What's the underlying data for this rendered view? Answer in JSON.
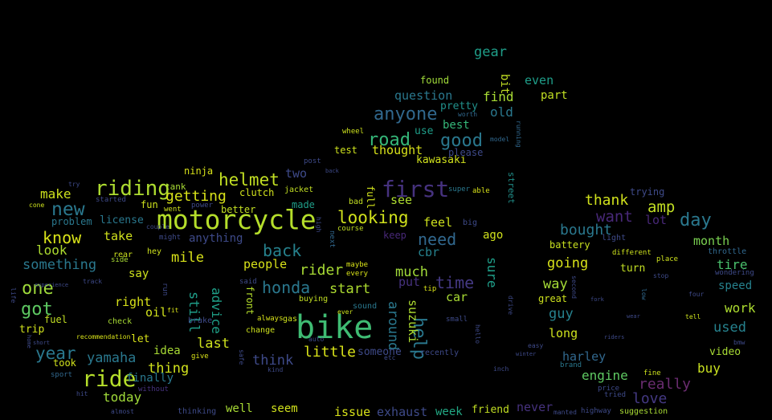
{
  "words": [
    {
      "text": "bike",
      "color": "#3fbc73"
    },
    {
      "text": "motorcycle",
      "color": "#b5de2b"
    },
    {
      "text": "riding",
      "color": "#addc30"
    },
    {
      "text": "ride",
      "color": "#b5de2b"
    },
    {
      "text": "first",
      "color": "#46327e"
    },
    {
      "text": "good",
      "color": "#2a788e"
    },
    {
      "text": "anyone",
      "color": "#31688e"
    },
    {
      "text": "road",
      "color": "#35b779"
    },
    {
      "text": "helmet",
      "color": "#c2df23"
    },
    {
      "text": "looking",
      "color": "#d0e11c"
    },
    {
      "text": "new",
      "color": "#2a788e"
    },
    {
      "text": "know",
      "color": "#d8e219"
    },
    {
      "text": "got",
      "color": "#5ec962"
    },
    {
      "text": "one",
      "color": "#9fda3a"
    },
    {
      "text": "year",
      "color": "#2a788e"
    },
    {
      "text": "honda",
      "color": "#2a788e"
    },
    {
      "text": "back",
      "color": "#26828e"
    },
    {
      "text": "need",
      "color": "#31688e"
    },
    {
      "text": "time",
      "color": "#443983"
    },
    {
      "text": "help",
      "color": "#2a788e"
    },
    {
      "text": "something",
      "color": "#2a788e"
    },
    {
      "text": "getting",
      "color": "#d8e219"
    },
    {
      "text": "want",
      "color": "#482878"
    },
    {
      "text": "amp",
      "color": "#c2df23"
    },
    {
      "text": "day",
      "color": "#2a788e"
    },
    {
      "text": "thank",
      "color": "#d0e11c"
    },
    {
      "text": "bought",
      "color": "#2a788e"
    },
    {
      "text": "make",
      "color": "#cde11d"
    },
    {
      "text": "look",
      "color": "#addc30"
    },
    {
      "text": "take",
      "color": "#d0e11c"
    },
    {
      "text": "mile",
      "color": "#d8e219"
    },
    {
      "text": "advice",
      "color": "#1fa088"
    },
    {
      "text": "still",
      "color": "#1f9e89"
    },
    {
      "text": "rider",
      "color": "#a8db34"
    },
    {
      "text": "start",
      "color": "#addc30"
    },
    {
      "text": "much",
      "color": "#a0da39"
    },
    {
      "text": "around",
      "color": "#2a788e"
    },
    {
      "text": "people",
      "color": "#d8e219"
    },
    {
      "text": "yamaha",
      "color": "#2a788e"
    },
    {
      "text": "thing",
      "color": "#d0e11c"
    },
    {
      "text": "think",
      "color": "#3e4a89"
    },
    {
      "text": "little",
      "color": "#d8e219"
    },
    {
      "text": "last",
      "color": "#cde11d"
    },
    {
      "text": "way",
      "color": "#a5db36"
    },
    {
      "text": "going",
      "color": "#d8e219"
    },
    {
      "text": "guy",
      "color": "#26828e"
    },
    {
      "text": "really",
      "color": "#6a2c70"
    },
    {
      "text": "love",
      "color": "#443983"
    },
    {
      "text": "buy",
      "color": "#c8e020"
    },
    {
      "text": "work",
      "color": "#addc30"
    },
    {
      "text": "engine",
      "color": "#5ec962"
    },
    {
      "text": "harley",
      "color": "#31688e"
    },
    {
      "text": "used",
      "color": "#26828e"
    },
    {
      "text": "tire",
      "color": "#4ac16d"
    },
    {
      "text": "month",
      "color": "#7ad151"
    },
    {
      "text": "gear",
      "color": "#1f9e89"
    },
    {
      "text": "question",
      "color": "#2a788e"
    },
    {
      "text": "find",
      "color": "#a8db34"
    },
    {
      "text": "old",
      "color": "#2a788e"
    },
    {
      "text": "even",
      "color": "#1f9e89"
    },
    {
      "text": "part",
      "color": "#c2df23"
    },
    {
      "text": "best",
      "color": "#35b779"
    },
    {
      "text": "thought",
      "color": "#d8e219"
    },
    {
      "text": "use",
      "color": "#1f9e89"
    },
    {
      "text": "kawasaki",
      "color": "#d0e11c"
    },
    {
      "text": "two",
      "color": "#3e4a89"
    },
    {
      "text": "see",
      "color": "#addc30"
    },
    {
      "text": "feel",
      "color": "#cde11d"
    },
    {
      "text": "sure",
      "color": "#1f9e89"
    },
    {
      "text": "cbr",
      "color": "#26828e"
    },
    {
      "text": "suzuki",
      "color": "#addc30"
    },
    {
      "text": "car",
      "color": "#a8db34"
    },
    {
      "text": "ago",
      "color": "#d0e11c"
    },
    {
      "text": "put",
      "color": "#46327e"
    },
    {
      "text": "right",
      "color": "#d8e219"
    },
    {
      "text": "say",
      "color": "#cde11d"
    },
    {
      "text": "oil",
      "color": "#d0e11c"
    },
    {
      "text": "idea",
      "color": "#a8db34"
    },
    {
      "text": "today",
      "color": "#a0da39"
    },
    {
      "text": "finally",
      "color": "#2a788e"
    },
    {
      "text": "well",
      "color": "#a8db34"
    },
    {
      "text": "seem",
      "color": "#d0e11c"
    },
    {
      "text": "issue",
      "color": "#d8e219"
    },
    {
      "text": "exhaust",
      "color": "#3e4a89"
    },
    {
      "text": "week",
      "color": "#22a884"
    },
    {
      "text": "friend",
      "color": "#c2df23"
    },
    {
      "text": "never",
      "color": "#46327e"
    },
    {
      "text": "fuel",
      "color": "#c2df23"
    },
    {
      "text": "trip",
      "color": "#d0e11c"
    },
    {
      "text": "let",
      "color": "#d8e219"
    },
    {
      "text": "took",
      "color": "#d0e11c"
    },
    {
      "text": "license",
      "color": "#2a788e"
    },
    {
      "text": "problem",
      "color": "#2a788e"
    },
    {
      "text": "fun",
      "color": "#cde11d"
    },
    {
      "text": "ninja",
      "color": "#d8e219"
    },
    {
      "text": "clutch",
      "color": "#d0e11c"
    },
    {
      "text": "anything",
      "color": "#3e4a89"
    },
    {
      "text": "made",
      "color": "#1f9e89"
    },
    {
      "text": "better",
      "color": "#c2df23"
    },
    {
      "text": "test",
      "color": "#cde11d"
    },
    {
      "text": "full",
      "color": "#d0e11c"
    },
    {
      "text": "pretty",
      "color": "#21918c"
    },
    {
      "text": "found",
      "color": "#a0da39"
    },
    {
      "text": "bit",
      "color": "#c2df23"
    },
    {
      "text": "please",
      "color": "#3e4a89"
    },
    {
      "text": "street",
      "color": "#21918c"
    },
    {
      "text": "battery",
      "color": "#c8e020"
    },
    {
      "text": "turn",
      "color": "#c2df23"
    },
    {
      "text": "speed",
      "color": "#26828e"
    },
    {
      "text": "great",
      "color": "#cde11d"
    },
    {
      "text": "long",
      "color": "#cde11d"
    },
    {
      "text": "video",
      "color": "#a8db34"
    },
    {
      "text": "lot",
      "color": "#482878"
    },
    {
      "text": "trying",
      "color": "#3e4a89"
    },
    {
      "text": "light",
      "color": "#3e4a89"
    },
    {
      "text": "front",
      "color": "#b5de2b"
    },
    {
      "text": "someone",
      "color": "#3e4a89"
    },
    {
      "text": "keep",
      "color": "#482878"
    },
    {
      "text": "rear",
      "color": "#cde11d"
    },
    {
      "text": "tank",
      "color": "#a8db34"
    },
    {
      "text": "jacket",
      "color": "#c2df23"
    },
    {
      "text": "wheel",
      "color": "#cde11d"
    },
    {
      "text": "post",
      "color": "#3e4a89"
    },
    {
      "text": "bad",
      "color": "#c2df23"
    },
    {
      "text": "able",
      "color": "#d8e219"
    },
    {
      "text": "super",
      "color": "#2a788e"
    },
    {
      "text": "sound",
      "color": "#2a788e"
    },
    {
      "text": "buying",
      "color": "#c2df23"
    },
    {
      "text": "throttle",
      "color": "#31688e"
    },
    {
      "text": "place",
      "color": "#cde11d"
    },
    {
      "text": "wondering",
      "color": "#3e4a89"
    },
    {
      "text": "brand",
      "color": "#2a788e"
    },
    {
      "text": "price",
      "color": "#3e4a89"
    },
    {
      "text": "suggestion",
      "color": "#a8db34"
    },
    {
      "text": "different",
      "color": "#cde11d"
    },
    {
      "text": "fine",
      "color": "#cde11d"
    },
    {
      "text": "tried",
      "color": "#3e4a89"
    },
    {
      "text": "model",
      "color": "#31688e"
    },
    {
      "text": "running",
      "color": "#31688e"
    },
    {
      "text": "worth",
      "color": "#31688e"
    },
    {
      "text": "hey",
      "color": "#cde11d"
    },
    {
      "text": "side",
      "color": "#a8db34"
    },
    {
      "text": "went",
      "color": "#cde11d"
    },
    {
      "text": "might",
      "color": "#3e4a89"
    },
    {
      "text": "power",
      "color": "#3e4a89"
    },
    {
      "text": "check",
      "color": "#a8db34"
    },
    {
      "text": "brake",
      "color": "#3e4a89"
    },
    {
      "text": "always",
      "color": "#d8e219"
    },
    {
      "text": "change",
      "color": "#cde11d"
    },
    {
      "text": "give",
      "color": "#d8e219"
    },
    {
      "text": "safe",
      "color": "#3e4a89"
    },
    {
      "text": "recommendation",
      "color": "#d8e219"
    },
    {
      "text": "home",
      "color": "#3e4a89"
    },
    {
      "text": "short",
      "color": "#3e4a89"
    },
    {
      "text": "sport",
      "color": "#31688e"
    },
    {
      "text": "almost",
      "color": "#3e4a89"
    },
    {
      "text": "thinking",
      "color": "#3e4a89"
    },
    {
      "text": "without",
      "color": "#46327e"
    },
    {
      "text": "manted",
      "color": "#3e4a89"
    },
    {
      "text": "highway",
      "color": "#3e4a89"
    },
    {
      "text": "recently",
      "color": "#3e4a89"
    },
    {
      "text": "small",
      "color": "#3e4a89"
    },
    {
      "text": "hello",
      "color": "#3e4a89"
    },
    {
      "text": "maybe",
      "color": "#d8e219"
    },
    {
      "text": "every",
      "color": "#d8e219"
    },
    {
      "text": "course",
      "color": "#c2df23"
    },
    {
      "text": "big",
      "color": "#3e4a89"
    },
    {
      "text": "next",
      "color": "#31688e"
    },
    {
      "text": "life",
      "color": "#3e4a89"
    },
    {
      "text": "track",
      "color": "#3e4a89"
    },
    {
      "text": "run",
      "color": "#3e4a89"
    },
    {
      "text": "fit",
      "color": "#d8e219"
    },
    {
      "text": "try",
      "color": "#3e4a89"
    },
    {
      "text": "couple",
      "color": "#3e4a89"
    },
    {
      "text": "cone",
      "color": "#cde11d"
    },
    {
      "text": "started",
      "color": "#3e4a89"
    },
    {
      "text": "drive",
      "color": "#3e4a89"
    },
    {
      "text": "second",
      "color": "#3e4a89"
    },
    {
      "text": "low",
      "color": "#31688e"
    },
    {
      "text": "tell",
      "color": "#cde11d"
    },
    {
      "text": "bmw",
      "color": "#3e4a89"
    },
    {
      "text": "auto",
      "color": "#3e4a89"
    },
    {
      "text": "etc",
      "color": "#3e4a89"
    },
    {
      "text": "kind",
      "color": "#3e4a89"
    },
    {
      "text": "high",
      "color": "#3e4a89"
    },
    {
      "text": "said",
      "color": "#3e4a89"
    },
    {
      "text": "gas",
      "color": "#cde11d"
    },
    {
      "text": "tip",
      "color": "#d8e219"
    },
    {
      "text": "four",
      "color": "#3e4a89"
    },
    {
      "text": "stop",
      "color": "#3e4a89"
    },
    {
      "text": "experience",
      "color": "#3e4a89"
    },
    {
      "text": "hit",
      "color": "#3e4a89"
    },
    {
      "text": "ever",
      "color": "#cde11d"
    },
    {
      "text": "easy",
      "color": "#3e4a89"
    },
    {
      "text": "inch",
      "color": "#3e4a89"
    },
    {
      "text": "fork",
      "color": "#3e4a89"
    },
    {
      "text": "riders",
      "color": "#3e4a89"
    },
    {
      "text": "winter",
      "color": "#3e4a89"
    },
    {
      "text": "wear",
      "color": "#3e4a89"
    },
    {
      "text": "back2",
      "color": "#3e4a89"
    }
  ]
}
